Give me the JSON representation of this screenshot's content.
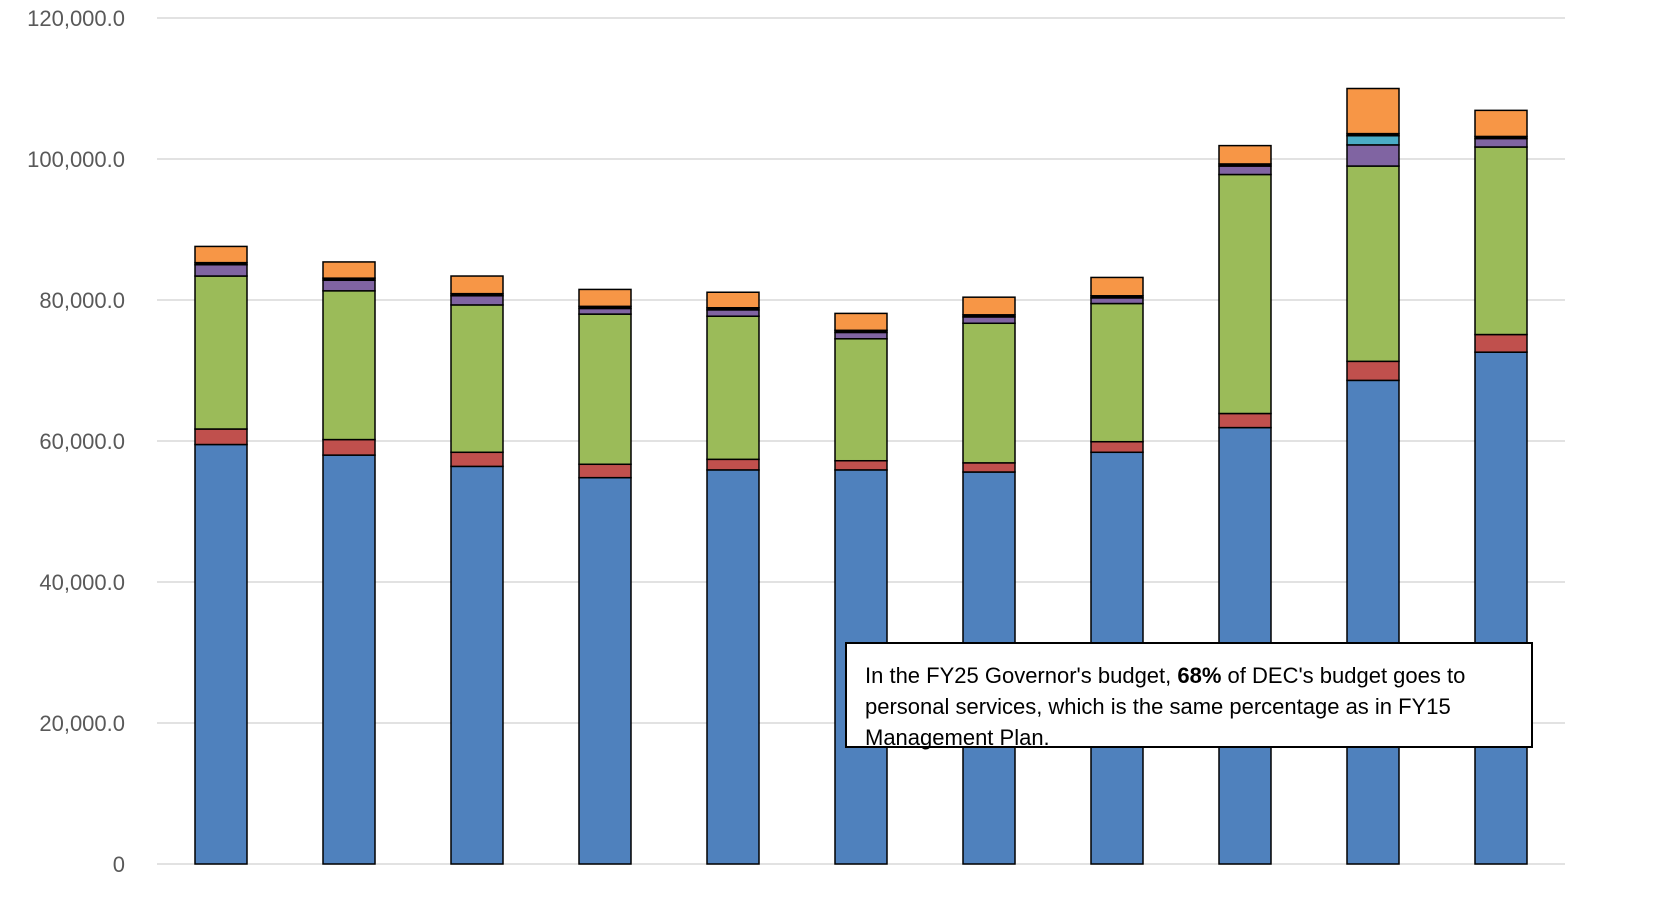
{
  "chart_data": {
    "type": "bar",
    "stacked": true,
    "categories": [
      "",
      "",
      "",
      "",
      "",
      "",
      "",
      "",
      "",
      "",
      ""
    ],
    "ylim": [
      0,
      120000
    ],
    "y_ticks": [
      "0",
      "20,000.0",
      "40,000.0",
      "60,000.0",
      "80,000.0",
      "100,000.0",
      "120,000.0"
    ],
    "gridlines": true,
    "series": [
      {
        "color": "#4f81bd",
        "values": [
          59500,
          58000,
          56400,
          54800,
          55900,
          55900,
          55600,
          58400,
          61900,
          68600,
          72600
        ]
      },
      {
        "color": "#c0504d",
        "values": [
          2200,
          2200,
          2000,
          1900,
          1500,
          1300,
          1300,
          1500,
          2000,
          2700,
          2500
        ]
      },
      {
        "color": "#9bbb59",
        "values": [
          21700,
          21100,
          20900,
          21300,
          20300,
          17300,
          19800,
          19600,
          33900,
          27700,
          26600
        ]
      },
      {
        "color": "#8064a2",
        "values": [
          1600,
          1500,
          1300,
          800,
          900,
          900,
          900,
          800,
          1200,
          3000,
          1200
        ]
      },
      {
        "color": "#4bacc6",
        "values": [
          0,
          0,
          0,
          0,
          0,
          0,
          0,
          0,
          0,
          1300,
          0
        ]
      },
      {
        "color": "#000000",
        "values": [
          300,
          300,
          300,
          300,
          300,
          300,
          300,
          300,
          300,
          300,
          300
        ]
      },
      {
        "color": "#f79646",
        "values": [
          2300,
          2300,
          2500,
          2400,
          2200,
          2400,
          2500,
          2600,
          2600,
          6400,
          3700
        ]
      }
    ],
    "annotation": {
      "text_before": "In the FY25 Governor's budget, ",
      "bold": "68%",
      "text_after": " of DEC's budget goes to personal services, which is the same percentage as in FY15 Management Plan."
    }
  }
}
